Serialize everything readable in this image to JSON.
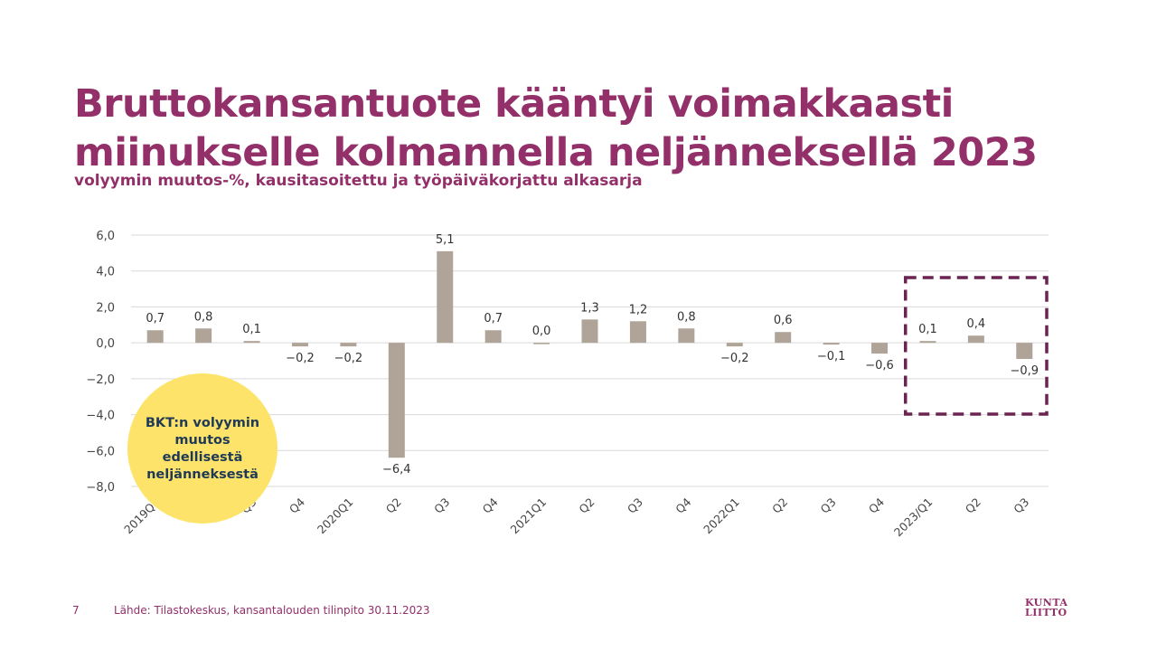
{
  "header": {
    "title_line1": "Bruttokansantuote kääntyi voimakkaasti",
    "title_line2": "miinukselle kolmannella neljänneksellä 2023",
    "subtitle": "volyymin muutos-%, kausitasoitettu ja työpäiväkorjattu alkasarja"
  },
  "callout": {
    "text": "BKT:n volyymin muutos edellisestä neljänneksestä"
  },
  "footer": {
    "page_number": "7",
    "source": "Lähde: Tilastokeskus, kansantalouden tilinpito 30.11.2023"
  },
  "logo": {
    "line1": "KUNTA",
    "line2": "LIITTO"
  },
  "colors": {
    "brand": "#93306a",
    "bar": "#b0a498",
    "highlight_box": "#6b2452",
    "callout_fill": "#fde36a",
    "callout_text": "#1f3a56"
  },
  "chart_data": {
    "type": "bar",
    "categories": [
      "2019Q1",
      "Q2",
      "Q3",
      "Q4",
      "2020Q1",
      "Q2",
      "Q3",
      "Q4",
      "2021Q1",
      "Q2",
      "Q3",
      "Q4",
      "2022Q1",
      "Q2",
      "Q3",
      "Q4",
      "2023/Q1",
      "Q2",
      "Q3"
    ],
    "values": [
      0.7,
      0.8,
      0.1,
      -0.2,
      -0.2,
      -6.4,
      5.1,
      0.7,
      0.0,
      1.3,
      1.2,
      0.8,
      -0.2,
      0.6,
      -0.1,
      -0.6,
      0.1,
      0.4,
      -0.9
    ],
    "data_labels": [
      "0,7",
      "0,8",
      "0,1",
      "−0,2",
      "−0,2",
      "−6,4",
      "5,1",
      "0,7",
      "0,0",
      "1,3",
      "1,2",
      "0,8",
      "−0,2",
      "0,6",
      "−0,1",
      "−0,6",
      "0,1",
      "0,4",
      "−0,9"
    ],
    "ylim": [
      -8,
      6
    ],
    "yticks": [
      6,
      4,
      2,
      0,
      -2,
      -4,
      -6,
      -8
    ],
    "ytick_labels": [
      "6,0",
      "4,0",
      "2,0",
      "0,0",
      "−2,0",
      "−4,0",
      "−6,0",
      "−8,0"
    ],
    "grid": true,
    "highlight_range": [
      16,
      18
    ],
    "title": "",
    "xlabel": "",
    "ylabel": ""
  }
}
